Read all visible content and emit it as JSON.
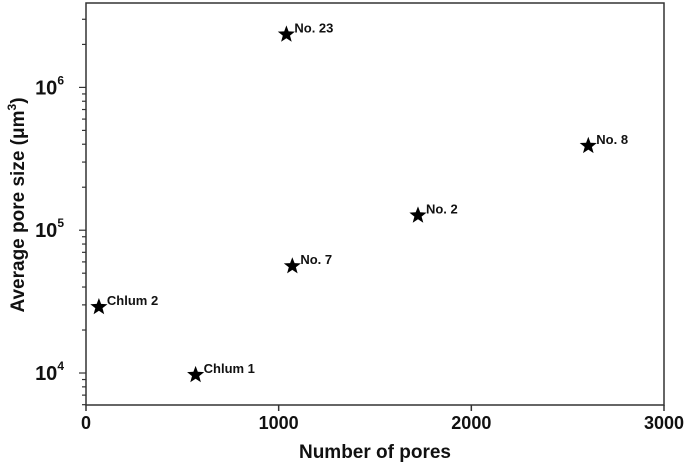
{
  "chart_data": {
    "type": "scatter",
    "title": "",
    "xlabel": "Number of pores",
    "ylabel": "Average pore size (μm³)",
    "ylabel_parts": {
      "main": "Average pore size (μm",
      "sup": "3",
      "close": ")"
    },
    "xlim": [
      0,
      3000
    ],
    "ylim": [
      5970,
      3900000
    ],
    "yscale": "log",
    "grid": false,
    "marker": "star",
    "marker_color": "#000000",
    "x_ticks": [
      0,
      1000,
      2000,
      3000
    ],
    "x_tick_labels": [
      "0",
      "1000",
      "2000",
      "3000"
    ],
    "y_ticks": [
      10000,
      100000,
      1000000
    ],
    "y_tick_labels": [
      {
        "base": "10",
        "exp": "4"
      },
      {
        "base": "10",
        "exp": "5"
      },
      {
        "base": "10",
        "exp": "6"
      }
    ],
    "points": [
      {
        "label": "Chlum 2",
        "x": 67,
        "y": 29000
      },
      {
        "label": "Chlum 1",
        "x": 569,
        "y": 9700
      },
      {
        "label": "No. 7",
        "x": 1071,
        "y": 56000
      },
      {
        "label": "No. 2",
        "x": 1723,
        "y": 127000
      },
      {
        "label": "No. 8",
        "x": 2607,
        "y": 390000
      },
      {
        "label": "No. 23",
        "x": 1040,
        "y": 2350000
      }
    ]
  }
}
